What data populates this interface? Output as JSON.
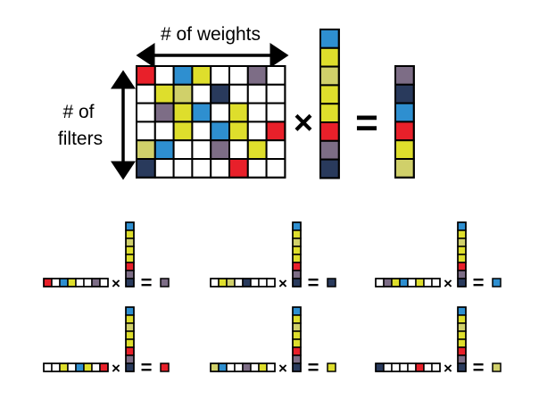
{
  "colors": {
    "R": "#e8202a",
    "B": "#2e8fd0",
    "Y": "#dede2c",
    "G": "#d0d06a",
    "P": "#7d6d86",
    "N": "#293a5c",
    "W": "#ffffff"
  },
  "labels": {
    "weights": "# of weights",
    "filters_line1": "# of",
    "filters_line2": "filters",
    "times": "×",
    "equals": "="
  },
  "matrix": [
    [
      "R",
      "W",
      "B",
      "Y",
      "W",
      "W",
      "P",
      "W"
    ],
    [
      "W",
      "Y",
      "G",
      "W",
      "N",
      "W",
      "W",
      "W"
    ],
    [
      "W",
      "P",
      "Y",
      "B",
      "W",
      "Y",
      "W",
      "W"
    ],
    [
      "W",
      "W",
      "Y",
      "W",
      "B",
      "Y",
      "W",
      "R"
    ],
    [
      "G",
      "B",
      "W",
      "W",
      "P",
      "W",
      "Y",
      "W"
    ],
    [
      "N",
      "W",
      "W",
      "W",
      "W",
      "R",
      "W",
      "W"
    ]
  ],
  "input_vector": [
    "B",
    "Y",
    "G",
    "Y",
    "Y",
    "R",
    "P",
    "N"
  ],
  "output_vector": [
    "P",
    "N",
    "B",
    "R",
    "Y",
    "G"
  ],
  "rows": [
    {
      "cells": [
        "R",
        "W",
        "B",
        "Y",
        "W",
        "W",
        "P",
        "W"
      ],
      "result": "P"
    },
    {
      "cells": [
        "W",
        "Y",
        "G",
        "W",
        "N",
        "W",
        "W",
        "W"
      ],
      "result": "N"
    },
    {
      "cells": [
        "W",
        "P",
        "Y",
        "B",
        "W",
        "Y",
        "W",
        "W"
      ],
      "result": "B"
    },
    {
      "cells": [
        "W",
        "W",
        "Y",
        "W",
        "B",
        "Y",
        "W",
        "R"
      ],
      "result": "R"
    },
    {
      "cells": [
        "G",
        "B",
        "W",
        "W",
        "P",
        "W",
        "Y",
        "W"
      ],
      "result": "Y"
    },
    {
      "cells": [
        "N",
        "W",
        "W",
        "W",
        "W",
        "R",
        "W",
        "W"
      ],
      "result": "G"
    }
  ]
}
